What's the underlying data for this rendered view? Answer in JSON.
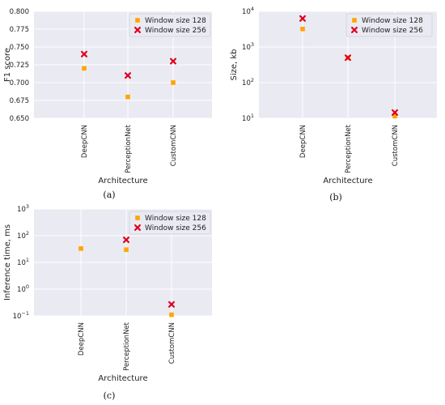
{
  "chart_data": [
    {
      "type": "scatter",
      "panel_caption": "(a)",
      "xlabel": "Architecture",
      "ylabel": "F1 score",
      "categories": [
        "DeepCNN",
        "PerceptionNet",
        "CustomCNN"
      ],
      "ylim": [
        0.65,
        0.8
      ],
      "yscale": "linear",
      "yticks": [
        {
          "v": 0.65,
          "l": "0.650"
        },
        {
          "v": 0.675,
          "l": "0.675"
        },
        {
          "v": 0.7,
          "l": "0.700"
        },
        {
          "v": 0.725,
          "l": "0.725"
        },
        {
          "v": 0.75,
          "l": "0.750"
        },
        {
          "v": 0.775,
          "l": "0.775"
        },
        {
          "v": 0.8,
          "l": "0.800"
        }
      ],
      "series": [
        {
          "name": "Window size 128",
          "marker": "square",
          "values": [
            0.72,
            0.68,
            0.7
          ]
        },
        {
          "name": "Window size 256",
          "marker": "x",
          "values": [
            0.74,
            0.71,
            0.73
          ]
        }
      ],
      "legend": "top-right",
      "grid": true
    },
    {
      "type": "scatter",
      "panel_caption": "(b)",
      "xlabel": "Architecture",
      "ylabel": "Size, kb",
      "categories": [
        "DeepCNN",
        "PerceptionNet",
        "CustomCNN"
      ],
      "ylim": [
        10,
        10000
      ],
      "yscale": "log",
      "yticks": [
        {
          "v": 10,
          "base": "10",
          "exp": "1"
        },
        {
          "v": 100,
          "base": "10",
          "exp": "2"
        },
        {
          "v": 1000,
          "base": "10",
          "exp": "3"
        },
        {
          "v": 10000,
          "base": "10",
          "exp": "4"
        }
      ],
      "series": [
        {
          "name": "Window size 128",
          "marker": "square",
          "values": [
            3200,
            500,
            11.5
          ]
        },
        {
          "name": "Window size 256",
          "marker": "x",
          "values": [
            6300,
            500,
            14.5
          ]
        }
      ],
      "legend": "top-right",
      "grid": true
    },
    {
      "type": "scatter",
      "panel_caption": "(c)",
      "xlabel": "Architecture",
      "ylabel": "Inference time, ms",
      "categories": [
        "DeepCNN",
        "PerceptionNet",
        "CustomCNN"
      ],
      "ylim": [
        0.1,
        1000
      ],
      "yscale": "log",
      "yticks": [
        {
          "v": 0.1,
          "base": "10",
          "exp": "−1"
        },
        {
          "v": 1,
          "base": "10",
          "exp": "0"
        },
        {
          "v": 10,
          "base": "10",
          "exp": "1"
        },
        {
          "v": 100,
          "base": "10",
          "exp": "2"
        },
        {
          "v": 1000,
          "base": "10",
          "exp": "3"
        }
      ],
      "series": [
        {
          "name": "Window size 128",
          "marker": "square",
          "values": [
            33,
            30,
            0.11
          ]
        },
        {
          "name": "Window size 256",
          "marker": "x",
          "values": [
            null,
            70,
            0.27
          ]
        }
      ],
      "legend": "top-right",
      "grid": true
    }
  ],
  "colors": {
    "plot_bg": "#eaeaf2",
    "grid": "#ffffff",
    "window_128": "#ffa500",
    "window_256": "#e0001b"
  }
}
